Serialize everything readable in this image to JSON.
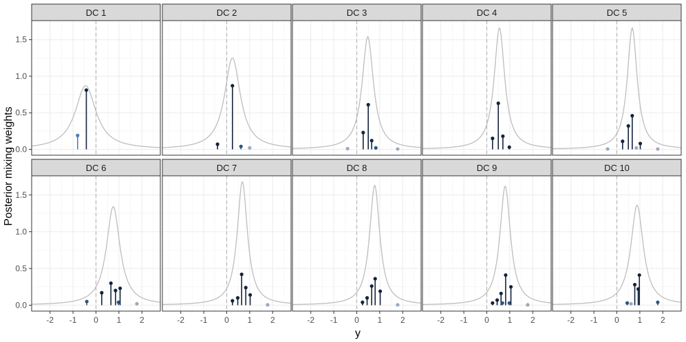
{
  "ylabel": "Posterior mixing weights",
  "xlabel": "y",
  "x_ticks": [
    "-2",
    "-1",
    "0",
    "1",
    "2"
  ],
  "y_ticks": [
    "0.0",
    "0.5",
    "1.0",
    "1.5"
  ],
  "colors": {
    "strip_bg": "#d9d9d9",
    "panel_border": "#333333",
    "grid": "#ebebeb",
    "density_line": "#bdbdbd",
    "dashed_zero": "#b3b3b3",
    "stem_dark": "#13233c",
    "stem_mid": "#2e5580",
    "stem_light": "#4f7fb0",
    "faded_point": "#9aaabf"
  },
  "chart_data": {
    "type": "facet_lollipop_density",
    "xlim": [
      -2.8,
      2.8
    ],
    "ylim": [
      -0.08,
      1.76
    ],
    "reference_line_x": 0,
    "panels": [
      {
        "label": "DC 1",
        "density": {
          "center": -0.45,
          "peak": 0.87,
          "scale": 0.55
        },
        "stems": [
          {
            "x": -0.8,
            "y": 0.19,
            "tone": "light"
          },
          {
            "x": -0.42,
            "y": 0.81,
            "tone": "dark"
          }
        ]
      },
      {
        "label": "DC 2",
        "density": {
          "center": 0.25,
          "peak": 1.25,
          "scale": 0.42
        },
        "stems": [
          {
            "x": -0.4,
            "y": 0.07,
            "tone": "dark"
          },
          {
            "x": 0.25,
            "y": 0.87,
            "tone": "dark"
          },
          {
            "x": 0.62,
            "y": 0.04,
            "tone": "mid"
          },
          {
            "x": 1.0,
            "y": 0.02,
            "tone": "faded"
          }
        ]
      },
      {
        "label": "DC 3",
        "density": {
          "center": 0.48,
          "peak": 1.54,
          "scale": 0.3
        },
        "stems": [
          {
            "x": -0.4,
            "y": 0.01,
            "tone": "faded"
          },
          {
            "x": 0.28,
            "y": 0.23,
            "tone": "dark"
          },
          {
            "x": 0.5,
            "y": 0.61,
            "tone": "dark"
          },
          {
            "x": 0.65,
            "y": 0.12,
            "tone": "dark"
          },
          {
            "x": 0.83,
            "y": 0.02,
            "tone": "mid"
          },
          {
            "x": 1.78,
            "y": 0.005,
            "tone": "faded"
          }
        ]
      },
      {
        "label": "DC 4",
        "density": {
          "center": 0.55,
          "peak": 1.66,
          "scale": 0.28
        },
        "stems": [
          {
            "x": 0.25,
            "y": 0.15,
            "tone": "dark"
          },
          {
            "x": 0.5,
            "y": 0.63,
            "tone": "dark"
          },
          {
            "x": 0.7,
            "y": 0.18,
            "tone": "dark"
          },
          {
            "x": 0.98,
            "y": 0.03,
            "tone": "dark"
          }
        ]
      },
      {
        "label": "DC 5",
        "density": {
          "center": 0.67,
          "peak": 1.66,
          "scale": 0.26
        },
        "stems": [
          {
            "x": -0.4,
            "y": 0.005,
            "tone": "faded"
          },
          {
            "x": 0.25,
            "y": 0.11,
            "tone": "dark"
          },
          {
            "x": 0.5,
            "y": 0.32,
            "tone": "dark"
          },
          {
            "x": 0.67,
            "y": 0.46,
            "tone": "dark"
          },
          {
            "x": 0.85,
            "y": 0.02,
            "tone": "faded"
          },
          {
            "x": 1.02,
            "y": 0.08,
            "tone": "dark"
          },
          {
            "x": 1.78,
            "y": 0.005,
            "tone": "faded"
          }
        ]
      },
      {
        "label": "DC 6",
        "density": {
          "center": 0.75,
          "peak": 1.34,
          "scale": 0.36
        },
        "stems": [
          {
            "x": -0.4,
            "y": 0.05,
            "tone": "mid"
          },
          {
            "x": 0.25,
            "y": 0.17,
            "tone": "dark"
          },
          {
            "x": 0.65,
            "y": 0.3,
            "tone": "dark"
          },
          {
            "x": 0.85,
            "y": 0.2,
            "tone": "dark"
          },
          {
            "x": 0.98,
            "y": 0.04,
            "tone": "mid"
          },
          {
            "x": 1.05,
            "y": 0.23,
            "tone": "dark"
          },
          {
            "x": 1.78,
            "y": 0.02,
            "tone": "faded"
          }
        ]
      },
      {
        "label": "DC 7",
        "density": {
          "center": 0.68,
          "peak": 1.68,
          "scale": 0.27
        },
        "stems": [
          {
            "x": 0.25,
            "y": 0.06,
            "tone": "dark"
          },
          {
            "x": 0.48,
            "y": 0.1,
            "tone": "dark"
          },
          {
            "x": 0.65,
            "y": 0.42,
            "tone": "dark"
          },
          {
            "x": 0.83,
            "y": 0.24,
            "tone": "dark"
          },
          {
            "x": 1.02,
            "y": 0.14,
            "tone": "dark"
          },
          {
            "x": 1.78,
            "y": 0.005,
            "tone": "faded"
          }
        ]
      },
      {
        "label": "DC 8",
        "density": {
          "center": 0.78,
          "peak": 1.63,
          "scale": 0.27
        },
        "stems": [
          {
            "x": 0.25,
            "y": 0.04,
            "tone": "dark"
          },
          {
            "x": 0.45,
            "y": 0.1,
            "tone": "dark"
          },
          {
            "x": 0.65,
            "y": 0.26,
            "tone": "dark"
          },
          {
            "x": 0.8,
            "y": 0.36,
            "tone": "dark"
          },
          {
            "x": 1.02,
            "y": 0.19,
            "tone": "dark"
          },
          {
            "x": 1.78,
            "y": 0.005,
            "tone": "faded"
          }
        ]
      },
      {
        "label": "DC 9",
        "density": {
          "center": 0.8,
          "peak": 1.62,
          "scale": 0.28
        },
        "stems": [
          {
            "x": 0.25,
            "y": 0.03,
            "tone": "dark"
          },
          {
            "x": 0.45,
            "y": 0.07,
            "tone": "dark"
          },
          {
            "x": 0.62,
            "y": 0.16,
            "tone": "dark"
          },
          {
            "x": 0.68,
            "y": 0.03,
            "tone": "mid"
          },
          {
            "x": 0.82,
            "y": 0.41,
            "tone": "dark"
          },
          {
            "x": 0.98,
            "y": 0.03,
            "tone": "mid"
          },
          {
            "x": 1.05,
            "y": 0.25,
            "tone": "dark"
          },
          {
            "x": 1.78,
            "y": 0.005,
            "tone": "faded"
          }
        ]
      },
      {
        "label": "DC 10",
        "density": {
          "center": 0.88,
          "peak": 1.36,
          "scale": 0.33
        },
        "stems": [
          {
            "x": 0.45,
            "y": 0.03,
            "tone": "mid"
          },
          {
            "x": 0.62,
            "y": 0.02,
            "tone": "faded"
          },
          {
            "x": 0.78,
            "y": 0.28,
            "tone": "dark"
          },
          {
            "x": 0.93,
            "y": 0.22,
            "tone": "dark"
          },
          {
            "x": 0.98,
            "y": 0.41,
            "tone": "dark"
          },
          {
            "x": 1.78,
            "y": 0.04,
            "tone": "mid"
          }
        ]
      }
    ]
  }
}
